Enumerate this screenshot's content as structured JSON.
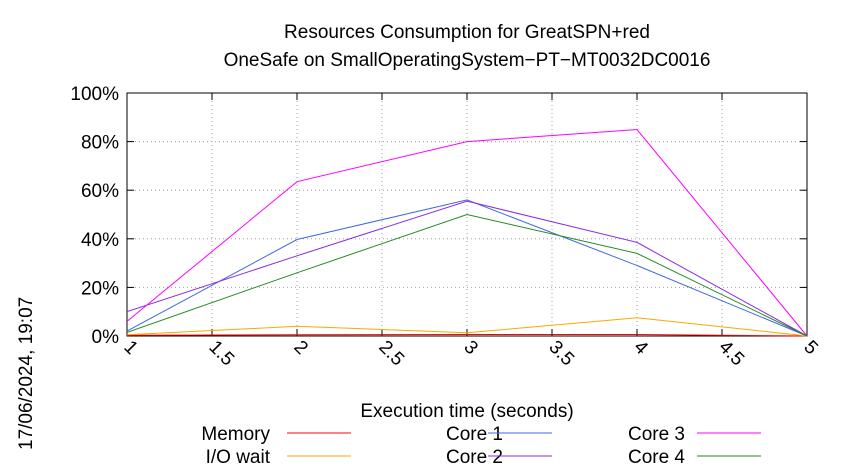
{
  "timestamp": "17/06/2024, 19:07",
  "chart_data": {
    "type": "line",
    "title": [
      "Resources Consumption for GreatSPN+red",
      "OneSafe on SmallOperatingSystem−PT−MT0032DC0016"
    ],
    "xlabel": "Execution time (seconds)",
    "ylabel": "",
    "xlim": [
      1,
      5
    ],
    "ylim": [
      0,
      100
    ],
    "xticks": [
      "1",
      "1.5",
      "2",
      "2.5",
      "3",
      "3.5",
      "4",
      "4.5",
      "5"
    ],
    "yticks": [
      "0%",
      "20%",
      "40%",
      "60%",
      "80%",
      "100%"
    ],
    "grid": true,
    "legend_position": "bottom",
    "x": [
      1,
      2,
      3,
      4,
      5
    ],
    "series": [
      {
        "name": "Memory",
        "color": "#ff0000",
        "values": [
          0.3,
          0.5,
          0.6,
          0.6,
          0
        ]
      },
      {
        "name": "I/O wait",
        "color": "#ffa500",
        "values": [
          0.5,
          4,
          1.3,
          7.5,
          0
        ]
      },
      {
        "name": "Core 1",
        "color": "#4169e1",
        "values": [
          2,
          39.7,
          56,
          29,
          0
        ]
      },
      {
        "name": "Core 2",
        "color": "#8a2be2",
        "values": [
          10,
          33,
          55.5,
          38.5,
          0
        ]
      },
      {
        "name": "Core 3",
        "color": "#ff00ff",
        "values": [
          6,
          63.5,
          80,
          85,
          0
        ]
      },
      {
        "name": "Core 4",
        "color": "#228b22",
        "values": [
          1.5,
          26,
          50,
          34,
          0
        ]
      }
    ]
  }
}
